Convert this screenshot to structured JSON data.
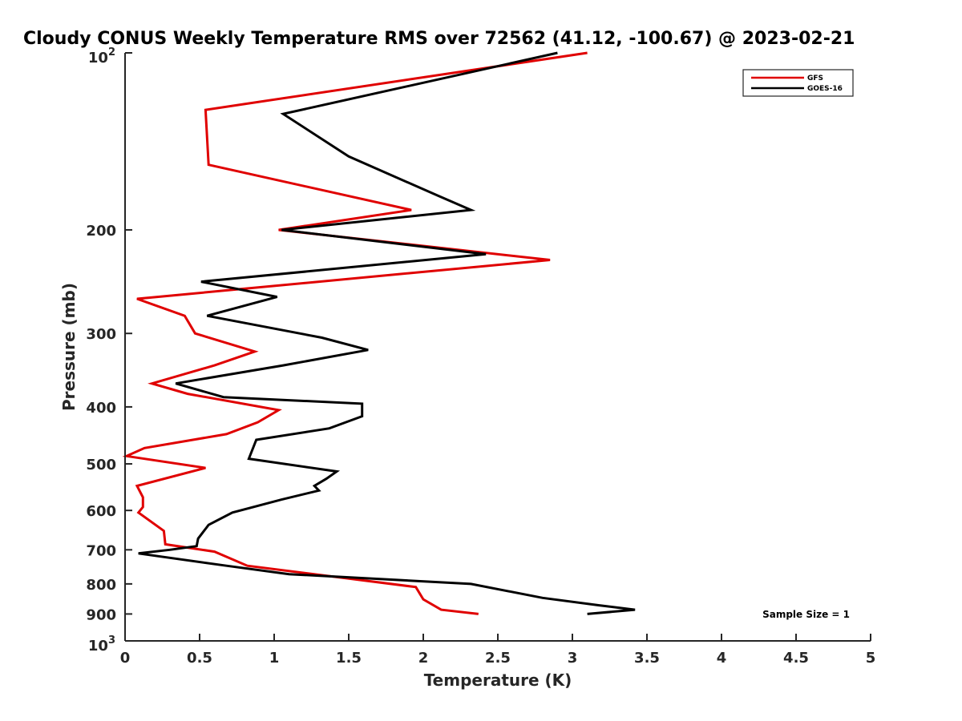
{
  "chart_data": {
    "type": "line",
    "title": "Cloudy CONUS Weekly Temperature RMS over 72562 (41.12, -100.67) @ 2023-02-21",
    "xlabel": "Temperature (K)",
    "ylabel": "Pressure (mb)",
    "xlim": [
      0,
      5
    ],
    "ylim": [
      100,
      1000
    ],
    "y_scale": "log",
    "y_reversed": true,
    "grid": false,
    "legend_position": "top-right",
    "x_ticks": [
      "0",
      "0.5",
      "1",
      "1.5",
      "2",
      "2.5",
      "3",
      "3.5",
      "4",
      "4.5",
      "5"
    ],
    "x_tick_values": [
      0,
      0.5,
      1,
      1.5,
      2,
      2.5,
      3,
      3.5,
      4,
      4.5,
      5
    ],
    "y_ticks": [
      {
        "value": 100,
        "base": "10",
        "exp": "2"
      },
      {
        "value": 200,
        "base": "200",
        "exp": ""
      },
      {
        "value": 300,
        "base": "300",
        "exp": ""
      },
      {
        "value": 400,
        "base": "400",
        "exp": ""
      },
      {
        "value": 500,
        "base": "500",
        "exp": ""
      },
      {
        "value": 600,
        "base": "600",
        "exp": ""
      },
      {
        "value": 700,
        "base": "700",
        "exp": ""
      },
      {
        "value": 800,
        "base": "800",
        "exp": ""
      },
      {
        "value": 900,
        "base": "900",
        "exp": ""
      },
      {
        "value": 1000,
        "base": "10",
        "exp": "3"
      }
    ],
    "annotation": "Sample Size = 1",
    "series": [
      {
        "name": "GFS",
        "color": "#e00000",
        "points": [
          [
            3.1,
            100
          ],
          [
            0.54,
            125
          ],
          [
            0.56,
            155
          ],
          [
            1.92,
            185
          ],
          [
            1.03,
            200
          ],
          [
            2.85,
            225
          ],
          [
            0.08,
            262
          ],
          [
            0.4,
            280
          ],
          [
            0.47,
            300
          ],
          [
            0.87,
            322
          ],
          [
            0.6,
            340
          ],
          [
            0.18,
            365
          ],
          [
            0.42,
            380
          ],
          [
            1.03,
            405
          ],
          [
            0.89,
            425
          ],
          [
            0.68,
            445
          ],
          [
            0.13,
            470
          ],
          [
            0.01,
            485
          ],
          [
            0.54,
            508
          ],
          [
            0.08,
            545
          ],
          [
            0.12,
            570
          ],
          [
            0.12,
            592
          ],
          [
            0.09,
            605
          ],
          [
            0.26,
            650
          ],
          [
            0.27,
            685
          ],
          [
            0.6,
            705
          ],
          [
            0.82,
            745
          ],
          [
            1.95,
            810
          ],
          [
            2.0,
            850
          ],
          [
            2.12,
            885
          ],
          [
            2.37,
            900
          ]
        ]
      },
      {
        "name": "GOES-16",
        "color": "#000000",
        "points": [
          [
            2.9,
            100
          ],
          [
            1.06,
            127
          ],
          [
            1.5,
            150
          ],
          [
            2.1,
            175
          ],
          [
            2.32,
            185
          ],
          [
            1.05,
            200
          ],
          [
            2.42,
            220
          ],
          [
            0.51,
            245
          ],
          [
            1.02,
            260
          ],
          [
            0.55,
            280
          ],
          [
            1.32,
            305
          ],
          [
            1.63,
            320
          ],
          [
            1.06,
            340
          ],
          [
            0.34,
            365
          ],
          [
            0.66,
            385
          ],
          [
            1.59,
            395
          ],
          [
            1.59,
            415
          ],
          [
            1.37,
            435
          ],
          [
            0.88,
            455
          ],
          [
            0.83,
            490
          ],
          [
            1.42,
            515
          ],
          [
            1.35,
            530
          ],
          [
            1.27,
            545
          ],
          [
            1.3,
            555
          ],
          [
            1.05,
            575
          ],
          [
            0.72,
            605
          ],
          [
            0.56,
            635
          ],
          [
            0.49,
            670
          ],
          [
            0.48,
            690
          ],
          [
            0.3,
            700
          ],
          [
            0.09,
            710
          ],
          [
            0.68,
            745
          ],
          [
            1.1,
            770
          ],
          [
            2.32,
            800
          ],
          [
            2.8,
            845
          ],
          [
            3.18,
            870
          ],
          [
            3.42,
            885
          ],
          [
            3.1,
            900
          ]
        ]
      }
    ]
  }
}
